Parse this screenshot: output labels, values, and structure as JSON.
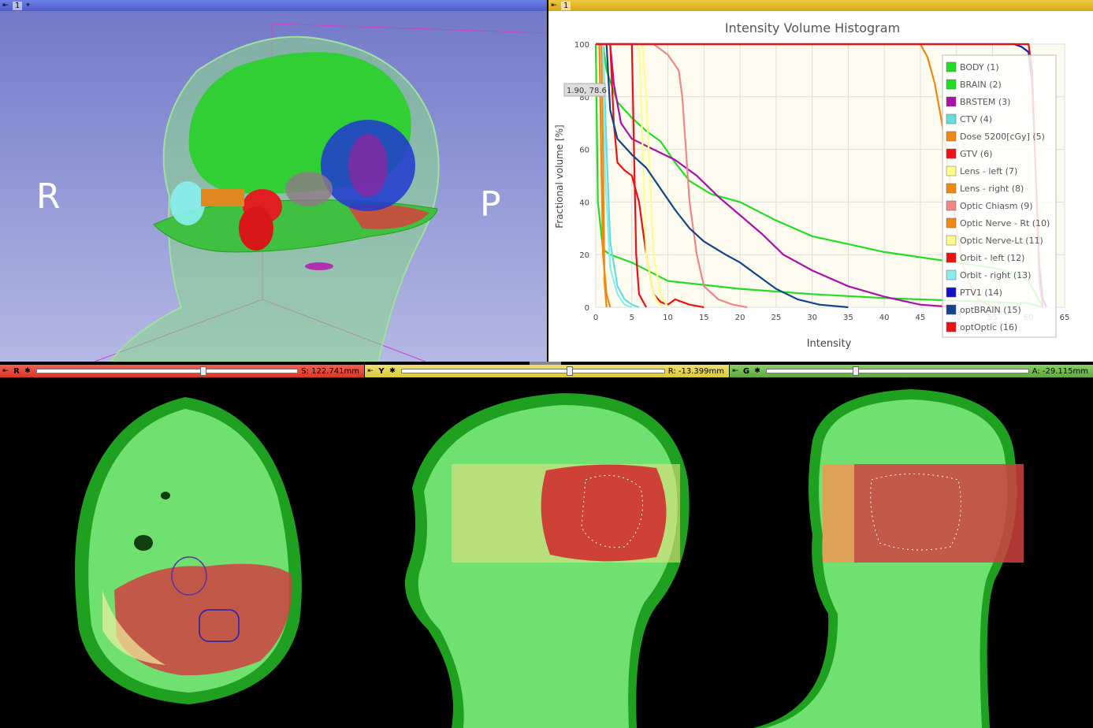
{
  "view3d": {
    "layout_number": "1",
    "orientation_left": "R",
    "orientation_right": "P"
  },
  "chart_view": {
    "layout_number": "1",
    "cursor_readout": "1.90, 78.6"
  },
  "chart_data": {
    "type": "line",
    "title": "Intensity Volume Histogram",
    "xlabel": "Intensity",
    "ylabel": "Fractional volume [%]",
    "xlim": [
      0,
      65
    ],
    "ylim": [
      0,
      100
    ],
    "x_ticks": [
      "0",
      "5",
      "10",
      "15",
      "20",
      "25",
      "30",
      "35",
      "40",
      "45",
      "50",
      "55",
      "60",
      "65"
    ],
    "y_ticks": [
      "0",
      "20",
      "40",
      "60",
      "80",
      "100"
    ],
    "legend_position": "right",
    "grid": true,
    "series": [
      {
        "name": "BODY (1)",
        "color": "#22dd22",
        "points": [
          [
            0,
            100
          ],
          [
            0.3,
            40
          ],
          [
            1,
            22
          ],
          [
            2,
            20
          ],
          [
            5,
            17
          ],
          [
            10,
            10
          ],
          [
            20,
            7
          ],
          [
            30,
            5
          ],
          [
            40,
            3.5
          ],
          [
            50,
            2.5
          ],
          [
            60,
            1.5
          ],
          [
            62,
            0
          ]
        ]
      },
      {
        "name": "BRAIN (2)",
        "color": "#22dd22",
        "points": [
          [
            0,
            100
          ],
          [
            1,
            100
          ],
          [
            1.5,
            90
          ],
          [
            3,
            78
          ],
          [
            5,
            72
          ],
          [
            7,
            67
          ],
          [
            9,
            63
          ],
          [
            11,
            55
          ],
          [
            13,
            48
          ],
          [
            16,
            43
          ],
          [
            20,
            40
          ],
          [
            25,
            33
          ],
          [
            30,
            27
          ],
          [
            35,
            24
          ],
          [
            40,
            21
          ],
          [
            45,
            19
          ],
          [
            50,
            17
          ],
          [
            55,
            15
          ],
          [
            58,
            13
          ],
          [
            60,
            10
          ],
          [
            61,
            5
          ],
          [
            62,
            0
          ]
        ]
      },
      {
        "name": "BRSTEM (3)",
        "color": "#aa11aa",
        "points": [
          [
            0,
            100
          ],
          [
            2,
            100
          ],
          [
            2.5,
            85
          ],
          [
            3.5,
            70
          ],
          [
            5,
            64
          ],
          [
            8,
            60
          ],
          [
            11,
            56
          ],
          [
            14,
            50
          ],
          [
            17,
            42
          ],
          [
            20,
            35
          ],
          [
            23,
            28
          ],
          [
            26,
            20
          ],
          [
            30,
            14
          ],
          [
            35,
            8
          ],
          [
            40,
            4
          ],
          [
            45,
            1
          ],
          [
            50,
            0
          ]
        ]
      },
      {
        "name": "CTV (4)",
        "color": "#66dddd",
        "points": [
          [
            0,
            100
          ],
          [
            1,
            100
          ],
          [
            1.5,
            60
          ],
          [
            2,
            25
          ],
          [
            3,
            8
          ],
          [
            4,
            3
          ],
          [
            5,
            1
          ],
          [
            6,
            0
          ]
        ]
      },
      {
        "name": "Dose 5200[cGy] (5)",
        "color": "#ee8811",
        "points": [
          [
            0,
            100
          ],
          [
            45,
            100
          ],
          [
            46,
            95
          ],
          [
            47,
            85
          ],
          [
            48,
            70
          ],
          [
            49,
            50
          ],
          [
            50,
            30
          ],
          [
            51,
            15
          ],
          [
            52,
            8
          ],
          [
            53,
            3
          ],
          [
            55,
            0
          ]
        ]
      },
      {
        "name": "GTV (6)",
        "color": "#ee1111",
        "points": [
          [
            0,
            100
          ],
          [
            2,
            100
          ],
          [
            2.5,
            70
          ],
          [
            3,
            55
          ],
          [
            4,
            52
          ],
          [
            5,
            50
          ],
          [
            6,
            40
          ],
          [
            7,
            20
          ],
          [
            8,
            5
          ],
          [
            9,
            2
          ],
          [
            10,
            1
          ],
          [
            11,
            3
          ],
          [
            13,
            1
          ],
          [
            15,
            0
          ]
        ]
      },
      {
        "name": "Lens - left (7)",
        "color": "#ffff88",
        "points": [
          [
            0,
            100
          ],
          [
            6.5,
            100
          ],
          [
            7,
            80
          ],
          [
            7.5,
            50
          ],
          [
            8,
            20
          ],
          [
            9,
            5
          ],
          [
            10,
            0
          ]
        ]
      },
      {
        "name": "Lens - right (8)",
        "color": "#ee8811",
        "points": [
          [
            0,
            100
          ],
          [
            0.5,
            100
          ],
          [
            0.8,
            50
          ],
          [
            1,
            20
          ],
          [
            1.5,
            5
          ],
          [
            2,
            0
          ]
        ]
      },
      {
        "name": "Optic Chiasm (9)",
        "color": "#ee8888",
        "points": [
          [
            0,
            100
          ],
          [
            8,
            100
          ],
          [
            10,
            96
          ],
          [
            11.5,
            90
          ],
          [
            12,
            80
          ],
          [
            12.5,
            60
          ],
          [
            13,
            40
          ],
          [
            14,
            20
          ],
          [
            15,
            8
          ],
          [
            17,
            3
          ],
          [
            19,
            1
          ],
          [
            21,
            0
          ]
        ]
      },
      {
        "name": "Optic Nerve - Rt (10)",
        "color": "#ee8811",
        "points": [
          [
            0,
            100
          ],
          [
            0.8,
            100
          ],
          [
            1,
            60
          ],
          [
            1.2,
            10
          ],
          [
            1.5,
            0
          ]
        ]
      },
      {
        "name": "Optic Nerve-Lt (11)",
        "color": "#ffff88",
        "points": [
          [
            0,
            100
          ],
          [
            6,
            100
          ],
          [
            6.5,
            60
          ],
          [
            7,
            20
          ],
          [
            8,
            5
          ],
          [
            9,
            0
          ]
        ]
      },
      {
        "name": "Orbit - left (12)",
        "color": "#ee1111",
        "points": [
          [
            0,
            100
          ],
          [
            5,
            100
          ],
          [
            5.3,
            60
          ],
          [
            5.6,
            20
          ],
          [
            6,
            5
          ],
          [
            7,
            0
          ]
        ]
      },
      {
        "name": "Orbit - right (13)",
        "color": "#88eeee",
        "points": [
          [
            0,
            100
          ],
          [
            1,
            100
          ],
          [
            1.3,
            50
          ],
          [
            2,
            15
          ],
          [
            3,
            5
          ],
          [
            4,
            1
          ],
          [
            5,
            0
          ]
        ]
      },
      {
        "name": "PTV1 (14)",
        "color": "#1111cc",
        "points": [
          [
            0,
            100
          ],
          [
            58,
            100
          ],
          [
            59,
            99
          ],
          [
            60,
            97
          ],
          [
            60.5,
            85
          ],
          [
            61,
            50
          ],
          [
            61.5,
            15
          ],
          [
            62,
            3
          ],
          [
            62.5,
            0
          ]
        ]
      },
      {
        "name": "optBRAIN (15)",
        "color": "#114488",
        "points": [
          [
            0,
            100
          ],
          [
            1.5,
            100
          ],
          [
            2,
            75
          ],
          [
            3,
            64
          ],
          [
            5,
            58
          ],
          [
            7,
            53
          ],
          [
            9,
            45
          ],
          [
            11,
            37
          ],
          [
            13,
            30
          ],
          [
            15,
            25
          ],
          [
            18,
            20
          ],
          [
            20,
            17
          ],
          [
            22,
            13
          ],
          [
            25,
            7
          ],
          [
            28,
            3
          ],
          [
            31,
            1
          ],
          [
            35,
            0
          ]
        ]
      },
      {
        "name": "optOptic (16)",
        "color": "#ee1111",
        "points": [
          [
            0,
            100
          ],
          [
            60,
            100
          ],
          [
            60.5,
            90
          ],
          [
            61,
            50
          ],
          [
            61.5,
            10
          ],
          [
            62,
            0
          ]
        ]
      }
    ]
  },
  "slices": {
    "red": {
      "label": "R",
      "value": "S: 122.741mm",
      "knob": 0.64
    },
    "yellow": {
      "label": "Y",
      "value": "R: -13.399mm",
      "knob": 0.64
    },
    "green": {
      "label": "G",
      "value": "A: -29.115mm",
      "knob": 0.34
    }
  },
  "colors": {
    "red_bar": "#e84838",
    "yellow_bar": "#e8d860",
    "green_bar": "#78c050"
  }
}
